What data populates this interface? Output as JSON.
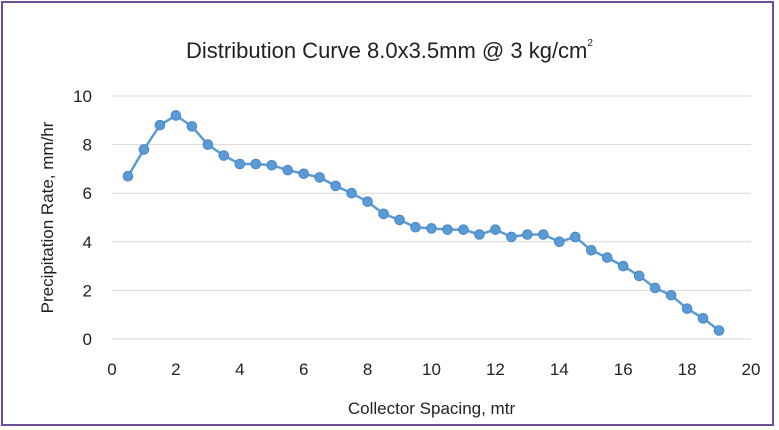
{
  "chart_data": {
    "type": "line",
    "title": "Distribution Curve 8.0x3.5mm @ 3 kg/cm",
    "title_superscript": "2",
    "xlabel": "Collector Spacing, mtr",
    "ylabel": "Precipitation Rate, mm/hr",
    "xlim": [
      0,
      20
    ],
    "ylim": [
      0,
      10
    ],
    "xticks": [
      0,
      2,
      4,
      6,
      8,
      10,
      12,
      14,
      16,
      18,
      20
    ],
    "yticks": [
      0,
      2,
      4,
      6,
      8,
      10
    ],
    "grid": true,
    "legend": "none",
    "series": [
      {
        "color": "#5b9bd5",
        "x": [
          0.5,
          1,
          1.5,
          2,
          2.5,
          3,
          3.5,
          4,
          4.5,
          5,
          5.5,
          6,
          6.5,
          7,
          7.5,
          8,
          8.5,
          9,
          9.5,
          10,
          10.5,
          11,
          11.5,
          12,
          12.5,
          13,
          13.5,
          14,
          14.5,
          15,
          15.5,
          16,
          16.5,
          17,
          17.5,
          18,
          18.5,
          19
        ],
        "y": [
          6.7,
          7.8,
          8.8,
          9.2,
          8.75,
          8.0,
          7.55,
          7.2,
          7.2,
          7.15,
          6.95,
          6.8,
          6.65,
          6.3,
          6.0,
          5.65,
          5.15,
          4.9,
          4.6,
          4.55,
          4.5,
          4.5,
          4.3,
          4.5,
          4.2,
          4.3,
          4.3,
          4.0,
          4.2,
          3.65,
          3.35,
          3.0,
          2.6,
          2.1,
          1.8,
          1.25,
          0.85,
          0.35
        ]
      }
    ]
  }
}
